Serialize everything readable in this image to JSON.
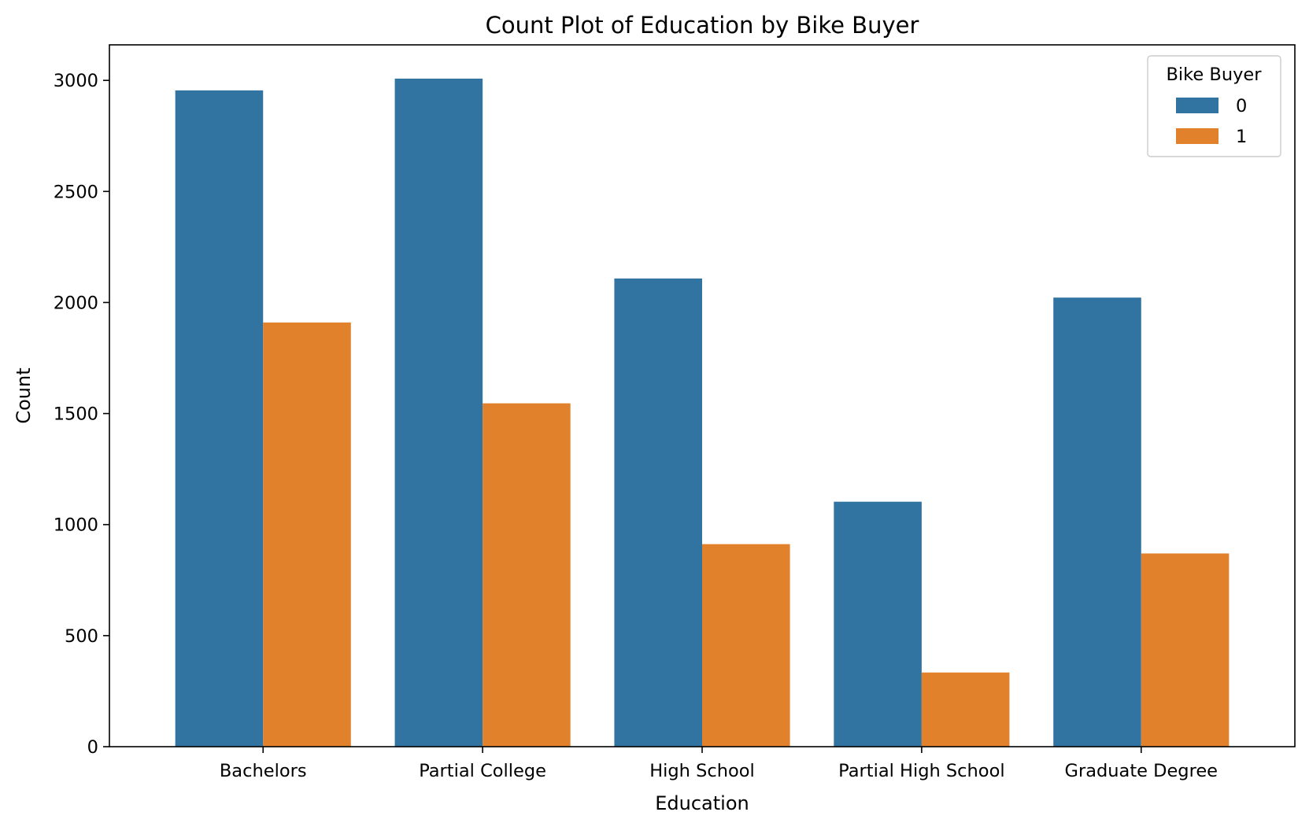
{
  "chart_data": {
    "type": "bar",
    "title": "Count Plot of Education by Bike Buyer",
    "xlabel": "Education",
    "ylabel": "Count",
    "categories": [
      "Bachelors",
      "Partial College",
      "High School",
      "Partial High School",
      "Graduate Degree"
    ],
    "series": [
      {
        "name": "0",
        "values": [
          2955,
          3008,
          2108,
          1103,
          2022
        ],
        "color": "#3274a1"
      },
      {
        "name": "1",
        "values": [
          1910,
          1546,
          912,
          334,
          870
        ],
        "color": "#e1812c"
      }
    ],
    "ylim": [
      0,
      3160
    ],
    "yticks": [
      0,
      500,
      1000,
      1500,
      2000,
      2500,
      3000
    ],
    "legend": {
      "title": "Bike Buyer",
      "position": "top-right"
    },
    "grid": false
  }
}
